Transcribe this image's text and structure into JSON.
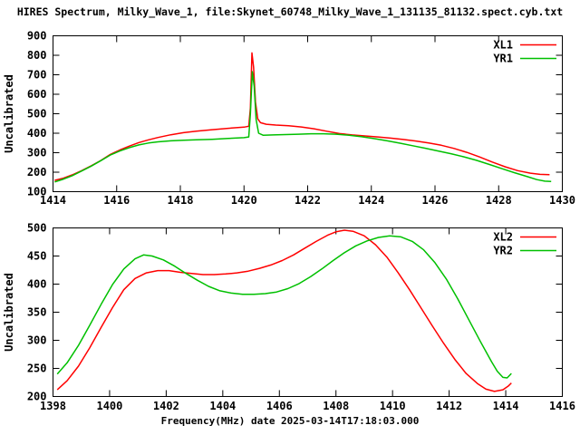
{
  "title": "HIRES Spectrum, Milky_Wave_1, file:Skynet_60748_Milky_Wave_1_131135_81132.spect.cyb.txt",
  "xlabel": "Frequency(MHz) date 2025-03-14T17:18:03.000",
  "colors": {
    "xl": "#ff0000",
    "yr": "#00c000",
    "axis": "#000000",
    "background": "#ffffff"
  },
  "chart_data": [
    {
      "type": "line",
      "ylabel": "Uncalibrated",
      "xlim": [
        1414,
        1430
      ],
      "ylim": [
        100,
        900
      ],
      "xticks": [
        1414,
        1416,
        1418,
        1420,
        1422,
        1424,
        1426,
        1428,
        1430
      ],
      "yticks": [
        100,
        200,
        300,
        400,
        500,
        600,
        700,
        800,
        900
      ],
      "grid": false,
      "legend_position": "top-right",
      "series": [
        {
          "name": "XL1",
          "color": "#ff0000",
          "points": [
            [
              1414.05,
              158
            ],
            [
              1414.3,
              168
            ],
            [
              1414.6,
              186
            ],
            [
              1414.9,
              208
            ],
            [
              1415.2,
              233
            ],
            [
              1415.5,
              260
            ],
            [
              1415.8,
              291
            ],
            [
              1416.1,
              314
            ],
            [
              1416.4,
              334
            ],
            [
              1416.7,
              352
            ],
            [
              1417.0,
              366
            ],
            [
              1417.3,
              378
            ],
            [
              1417.7,
              392
            ],
            [
              1418.1,
              403
            ],
            [
              1418.5,
              410
            ],
            [
              1419.0,
              418
            ],
            [
              1419.5,
              425
            ],
            [
              1420.0,
              431
            ],
            [
              1420.15,
              436
            ],
            [
              1420.2,
              530
            ],
            [
              1420.25,
              812
            ],
            [
              1420.3,
              740
            ],
            [
              1420.36,
              560
            ],
            [
              1420.43,
              474
            ],
            [
              1420.52,
              454
            ],
            [
              1420.7,
              446
            ],
            [
              1421.0,
              442
            ],
            [
              1421.4,
              438
            ],
            [
              1421.8,
              432
            ],
            [
              1422.2,
              423
            ],
            [
              1422.6,
              410
            ],
            [
              1423.0,
              398
            ],
            [
              1423.4,
              391
            ],
            [
              1423.8,
              386
            ],
            [
              1424.2,
              381
            ],
            [
              1424.6,
              375
            ],
            [
              1425.0,
              368
            ],
            [
              1425.4,
              360
            ],
            [
              1425.8,
              350
            ],
            [
              1426.2,
              338
            ],
            [
              1426.6,
              322
            ],
            [
              1427.0,
              302
            ],
            [
              1427.4,
              278
            ],
            [
              1427.8,
              252
            ],
            [
              1428.2,
              228
            ],
            [
              1428.6,
              208
            ],
            [
              1429.0,
              195
            ],
            [
              1429.3,
              189
            ],
            [
              1429.6,
              187
            ]
          ]
        },
        {
          "name": "YR1",
          "color": "#00c000",
          "points": [
            [
              1414.05,
              150
            ],
            [
              1414.3,
              163
            ],
            [
              1414.6,
              182
            ],
            [
              1414.9,
              206
            ],
            [
              1415.2,
              231
            ],
            [
              1415.5,
              259
            ],
            [
              1415.8,
              288
            ],
            [
              1416.1,
              309
            ],
            [
              1416.4,
              326
            ],
            [
              1416.7,
              340
            ],
            [
              1417.0,
              350
            ],
            [
              1417.3,
              356
            ],
            [
              1417.7,
              361
            ],
            [
              1418.1,
              364
            ],
            [
              1418.5,
              366
            ],
            [
              1419.0,
              369
            ],
            [
              1419.5,
              373
            ],
            [
              1420.0,
              377
            ],
            [
              1420.15,
              381
            ],
            [
              1420.2,
              500
            ],
            [
              1420.26,
              716
            ],
            [
              1420.32,
              640
            ],
            [
              1420.38,
              470
            ],
            [
              1420.46,
              400
            ],
            [
              1420.6,
              390
            ],
            [
              1420.9,
              391
            ],
            [
              1421.3,
              393
            ],
            [
              1421.7,
              395
            ],
            [
              1422.1,
              397
            ],
            [
              1422.5,
              397
            ],
            [
              1422.9,
              395
            ],
            [
              1423.3,
              390
            ],
            [
              1423.7,
              382
            ],
            [
              1424.1,
              372
            ],
            [
              1424.5,
              361
            ],
            [
              1424.9,
              349
            ],
            [
              1425.3,
              336
            ],
            [
              1425.7,
              323
            ],
            [
              1426.1,
              309
            ],
            [
              1426.5,
              295
            ],
            [
              1426.9,
              279
            ],
            [
              1427.3,
              261
            ],
            [
              1427.7,
              240
            ],
            [
              1428.1,
              218
            ],
            [
              1428.5,
              197
            ],
            [
              1428.9,
              177
            ],
            [
              1429.2,
              162
            ],
            [
              1429.45,
              154
            ],
            [
              1429.65,
              152
            ]
          ]
        }
      ]
    },
    {
      "type": "line",
      "ylabel": "Uncalibrated",
      "xlim": [
        1398,
        1416
      ],
      "ylim": [
        200,
        500
      ],
      "xticks": [
        1398,
        1400,
        1402,
        1404,
        1406,
        1408,
        1410,
        1412,
        1414,
        1416
      ],
      "yticks": [
        200,
        250,
        300,
        350,
        400,
        450,
        500
      ],
      "grid": false,
      "legend_position": "top-right",
      "series": [
        {
          "name": "XL2",
          "color": "#ff0000",
          "points": [
            [
              1398.15,
              212
            ],
            [
              1398.5,
              228
            ],
            [
              1398.9,
              254
            ],
            [
              1399.3,
              287
            ],
            [
              1399.7,
              323
            ],
            [
              1400.1,
              358
            ],
            [
              1400.5,
              390
            ],
            [
              1400.9,
              410
            ],
            [
              1401.3,
              420
            ],
            [
              1401.7,
              424
            ],
            [
              1402.1,
              424
            ],
            [
              1402.5,
              421
            ],
            [
              1402.9,
              419
            ],
            [
              1403.3,
              417
            ],
            [
              1403.7,
              417
            ],
            [
              1404.1,
              418
            ],
            [
              1404.5,
              420
            ],
            [
              1404.9,
              423
            ],
            [
              1405.3,
              428
            ],
            [
              1405.7,
              434
            ],
            [
              1406.1,
              442
            ],
            [
              1406.5,
              452
            ],
            [
              1406.9,
              464
            ],
            [
              1407.3,
              476
            ],
            [
              1407.7,
              487
            ],
            [
              1408.0,
              493
            ],
            [
              1408.3,
              496
            ],
            [
              1408.6,
              494
            ],
            [
              1409.0,
              486
            ],
            [
              1409.4,
              470
            ],
            [
              1409.8,
              448
            ],
            [
              1410.2,
              420
            ],
            [
              1410.6,
              390
            ],
            [
              1411.0,
              358
            ],
            [
              1411.4,
              326
            ],
            [
              1411.8,
              295
            ],
            [
              1412.2,
              266
            ],
            [
              1412.6,
              241
            ],
            [
              1413.0,
              223
            ],
            [
              1413.3,
              213
            ],
            [
              1413.6,
              209
            ],
            [
              1413.9,
              212
            ],
            [
              1414.1,
              219
            ],
            [
              1414.2,
              224
            ]
          ]
        },
        {
          "name": "YR2",
          "color": "#00c000",
          "points": [
            [
              1398.15,
              240
            ],
            [
              1398.5,
              260
            ],
            [
              1398.9,
              291
            ],
            [
              1399.3,
              327
            ],
            [
              1399.7,
              364
            ],
            [
              1400.1,
              399
            ],
            [
              1400.5,
              427
            ],
            [
              1400.9,
              445
            ],
            [
              1401.2,
              452
            ],
            [
              1401.5,
              450
            ],
            [
              1401.9,
              443
            ],
            [
              1402.3,
              432
            ],
            [
              1402.7,
              419
            ],
            [
              1403.1,
              407
            ],
            [
              1403.5,
              396
            ],
            [
              1403.9,
              388
            ],
            [
              1404.3,
              384
            ],
            [
              1404.7,
              382
            ],
            [
              1405.1,
              382
            ],
            [
              1405.5,
              383
            ],
            [
              1405.9,
              386
            ],
            [
              1406.3,
              392
            ],
            [
              1406.7,
              401
            ],
            [
              1407.1,
              413
            ],
            [
              1407.5,
              427
            ],
            [
              1407.9,
              442
            ],
            [
              1408.3,
              456
            ],
            [
              1408.7,
              468
            ],
            [
              1409.1,
              477
            ],
            [
              1409.5,
              483
            ],
            [
              1409.9,
              486
            ],
            [
              1410.3,
              484
            ],
            [
              1410.7,
              476
            ],
            [
              1411.1,
              461
            ],
            [
              1411.5,
              438
            ],
            [
              1411.9,
              409
            ],
            [
              1412.3,
              374
            ],
            [
              1412.7,
              336
            ],
            [
              1413.1,
              298
            ],
            [
              1413.5,
              262
            ],
            [
              1413.7,
              245
            ],
            [
              1413.9,
              234
            ],
            [
              1414.05,
              233
            ],
            [
              1414.2,
              241
            ]
          ]
        }
      ]
    }
  ]
}
